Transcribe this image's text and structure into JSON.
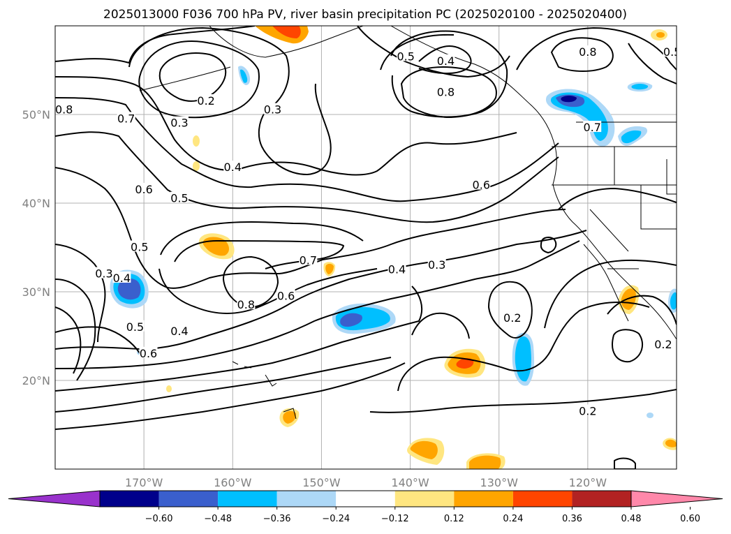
{
  "chart_data": {
    "type": "contour_map",
    "title": "2025013000 F036 700 hPa PV, river basin precipitation PC (2025020100 - 2025020400)",
    "lon_range": [
      -180,
      -110
    ],
    "lat_range": [
      10,
      60
    ],
    "lon_ticks": [
      "170°W",
      "160°W",
      "150°W",
      "140°W",
      "130°W",
      "120°W"
    ],
    "lat_ticks": [
      "20°N",
      "30°N",
      "40°N",
      "50°N"
    ],
    "grid": true,
    "colorbar": {
      "ticks": [
        "−0.60",
        "−0.48",
        "−0.36",
        "−0.24",
        "−0.12",
        "0.12",
        "0.24",
        "0.36",
        "0.48",
        "0.60"
      ],
      "bins": [
        {
          "range": "< -0.60",
          "color": "#9932cc"
        },
        {
          "range": "-0.60 – -0.48",
          "color": "#00008b"
        },
        {
          "range": "-0.48 – -0.36",
          "color": "#3a5fcd"
        },
        {
          "range": "-0.36 – -0.24",
          "color": "#00bfff"
        },
        {
          "range": "-0.24 – -0.12",
          "color": "#add8f7"
        },
        {
          "range": "-0.12 – 0.12",
          "color": "#ffffff"
        },
        {
          "range": "0.12 – 0.24",
          "color": "#ffe680"
        },
        {
          "range": "0.24 – 0.36",
          "color": "#ffa500"
        },
        {
          "range": "0.36 – 0.48",
          "color": "#ff4500"
        },
        {
          "range": "0.48 – 0.60",
          "color": "#b22222"
        },
        {
          "range": "> 0.60",
          "color": "#ff88aa"
        }
      ]
    },
    "pv_contour_labels": [
      {
        "text": "0.8",
        "lon": -179,
        "lat": 50.5
      },
      {
        "text": "0.7",
        "lon": -172,
        "lat": 49.5
      },
      {
        "text": "0.2",
        "lon": -163,
        "lat": 51.5
      },
      {
        "text": "0.3",
        "lon": -166,
        "lat": 49
      },
      {
        "text": "0.3",
        "lon": -155.5,
        "lat": 50.5
      },
      {
        "text": "0.4",
        "lon": -160,
        "lat": 44
      },
      {
        "text": "0.6",
        "lon": -170,
        "lat": 41.5
      },
      {
        "text": "0.5",
        "lon": -166,
        "lat": 40.5
      },
      {
        "text": "0.5",
        "lon": -170.5,
        "lat": 35
      },
      {
        "text": "0.3",
        "lon": -174.5,
        "lat": 32
      },
      {
        "text": "0.4",
        "lon": -172.5,
        "lat": 31.5
      },
      {
        "text": "0.7",
        "lon": -151.5,
        "lat": 33.5
      },
      {
        "text": "0.8",
        "lon": -158.5,
        "lat": 28.5
      },
      {
        "text": "0.6",
        "lon": -154,
        "lat": 29.5
      },
      {
        "text": "0.5",
        "lon": -171,
        "lat": 26
      },
      {
        "text": "0.4",
        "lon": -166,
        "lat": 25.5
      },
      {
        "text": "0.6",
        "lon": -169.5,
        "lat": 23
      },
      {
        "text": "0.5",
        "lon": -140.5,
        "lat": 56.5
      },
      {
        "text": "0.4",
        "lon": -136,
        "lat": 56
      },
      {
        "text": "0.8",
        "lon": -136,
        "lat": 52.5
      },
      {
        "text": "0.6",
        "lon": -132,
        "lat": 42
      },
      {
        "text": "0.4",
        "lon": -141.5,
        "lat": 32.5
      },
      {
        "text": "0.3",
        "lon": -137,
        "lat": 33
      },
      {
        "text": "0.2",
        "lon": -128.5,
        "lat": 27
      },
      {
        "text": "0.2",
        "lon": -120,
        "lat": 16.5
      },
      {
        "text": "0.2",
        "lon": -111.5,
        "lat": 24
      },
      {
        "text": "0.8",
        "lon": -120,
        "lat": 57
      },
      {
        "text": "0.5",
        "lon": -110.5,
        "lat": 57
      },
      {
        "text": "0.7",
        "lon": -119.5,
        "lat": 48.5
      },
      {
        "text": "0.6",
        "lon": -109,
        "lat": 47
      }
    ],
    "precip_pc_features": [
      {
        "sign": "positive",
        "lon": -150.5,
        "lat": 60.5,
        "max_bin": "0.36 – 0.48"
      },
      {
        "sign": "negative",
        "lon": -154.5,
        "lat": 54.5,
        "max_bin": "-0.36 – -0.24"
      },
      {
        "sign": "negative",
        "lon": -121.5,
        "lat": 51.5,
        "max_bin": "< -0.60"
      },
      {
        "sign": "negative",
        "lon": -119.5,
        "lat": 48.5,
        "max_bin": "-0.36 – -0.24"
      },
      {
        "sign": "negative",
        "lon": -115.5,
        "lat": 46.5,
        "max_bin": "-0.36 – -0.24"
      },
      {
        "sign": "negative",
        "lon": -172,
        "lat": 30,
        "max_bin": "-0.60 – -0.48"
      },
      {
        "sign": "positive",
        "lon": -161,
        "lat": 35,
        "max_bin": "0.24 – 0.36"
      },
      {
        "sign": "positive",
        "lon": -148.5,
        "lat": 32.5,
        "max_bin": "0.24 – 0.36"
      },
      {
        "sign": "negative",
        "lon": -145,
        "lat": 27,
        "max_bin": "-0.48 – -0.36"
      },
      {
        "sign": "positive",
        "lon": -133.5,
        "lat": 22,
        "max_bin": "0.36 – 0.48"
      },
      {
        "sign": "negative",
        "lon": -127.5,
        "lat": 23,
        "max_bin": "-0.36 – -0.24"
      },
      {
        "sign": "positive",
        "lon": -156,
        "lat": 16,
        "max_bin": "0.24 – 0.36"
      },
      {
        "sign": "positive",
        "lon": -138.5,
        "lat": 12.5,
        "max_bin": "0.24 – 0.36"
      },
      {
        "sign": "positive",
        "lon": -132,
        "lat": 10.5,
        "max_bin": "0.24 – 0.36"
      },
      {
        "sign": "positive",
        "lon": -114,
        "lat": 29.5,
        "max_bin": "0.24 – 0.36"
      },
      {
        "sign": "negative",
        "lon": -110,
        "lat": 29,
        "max_bin": "-0.36 – -0.24"
      },
      {
        "sign": "negative",
        "lon": -114,
        "lat": 53.5,
        "max_bin": "-0.36 – -0.24"
      }
    ]
  }
}
